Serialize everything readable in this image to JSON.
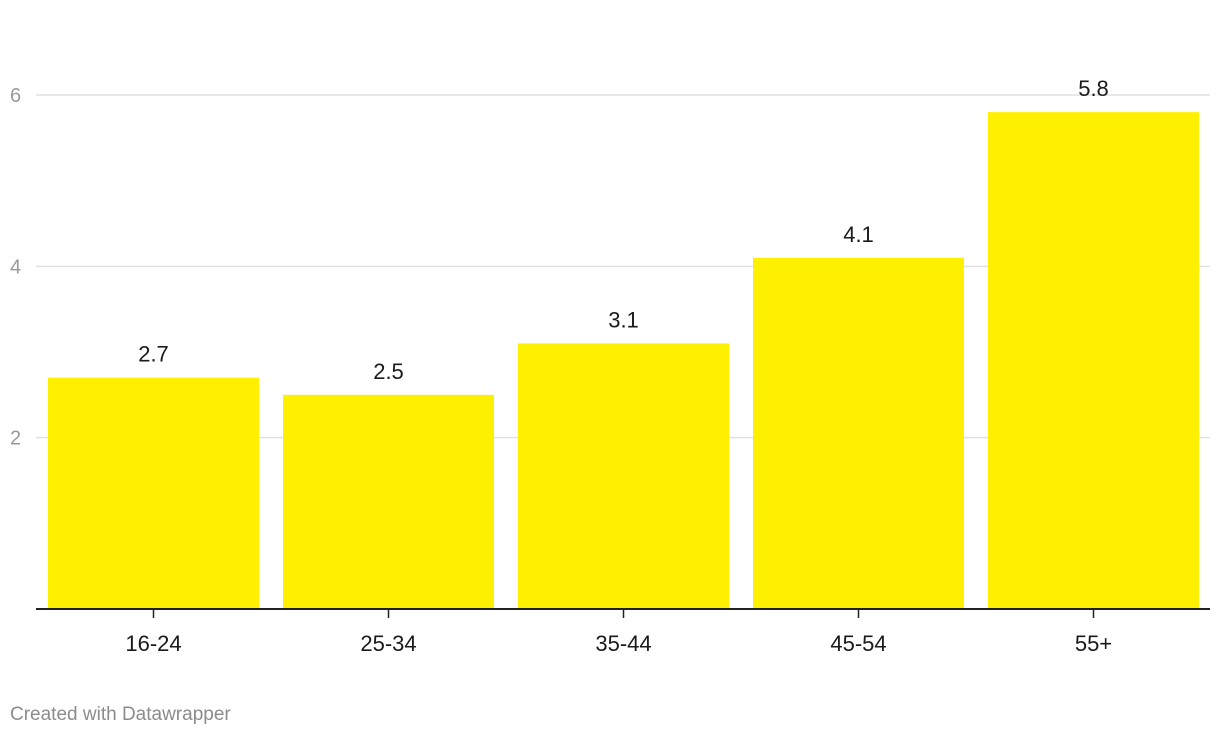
{
  "chart_data": {
    "type": "bar",
    "categories": [
      "16-24",
      "25-34",
      "35-44",
      "45-54",
      "55+"
    ],
    "values": [
      2.7,
      2.5,
      3.1,
      4.1,
      5.8
    ],
    "value_labels": [
      "2.7",
      "2.5",
      "3.1",
      "4.1",
      "5.8"
    ],
    "yticks": [
      2,
      4,
      6
    ],
    "ylim": [
      0,
      6.0
    ],
    "grid": true,
    "bar_color": "#fff000",
    "gridline_color": "#e0e0e0",
    "axis_color": "#222222"
  },
  "footer": {
    "credit": "Created with Datawrapper"
  }
}
